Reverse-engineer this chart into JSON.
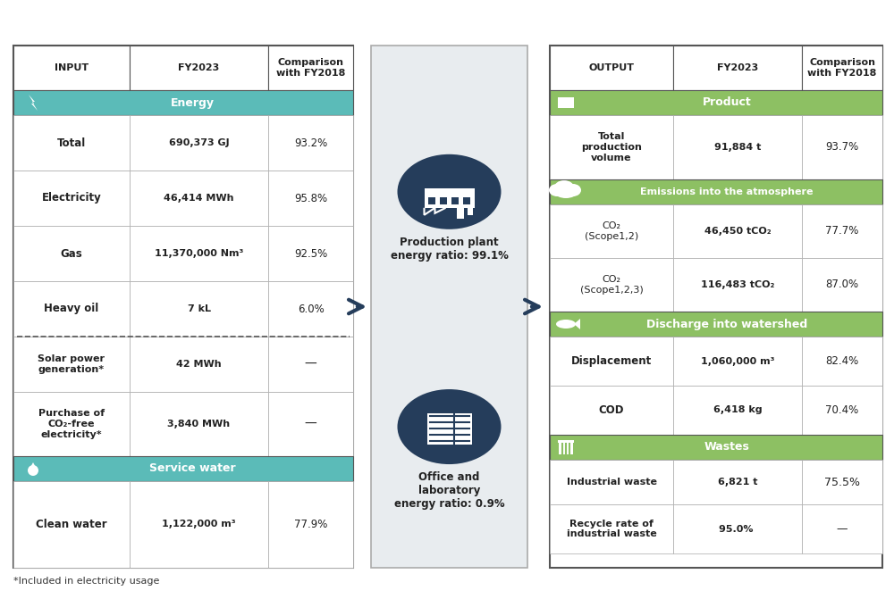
{
  "bg_color": "#ffffff",
  "teal_color": "#5bbbb8",
  "green_color": "#8dc063",
  "dark_navy": "#253d5b",
  "light_gray_bg": "#e8ecef",
  "border_color": "#444444",
  "input_header": [
    "INPUT",
    "FY2023",
    "Comparison\nwith FY2018"
  ],
  "output_header": [
    "OUTPUT",
    "FY2023",
    "Comparison\nwith FY2018"
  ],
  "energy_section_label": "Energy",
  "service_water_section_label": "Service water",
  "product_section_label": "Product",
  "emissions_section_label": "Emissions into the atmosphere",
  "watershed_section_label": "Discharge into watershed",
  "wastes_section_label": "Wastes",
  "input_rows": [
    [
      "Total",
      "690,373",
      "GJ",
      "93.2%"
    ],
    [
      "Electricity",
      "46,414",
      "MWh",
      "95.8%"
    ],
    [
      "Gas",
      "11,370,000",
      "Nm³",
      "92.5%"
    ],
    [
      "Heavy oil",
      "7",
      "kL",
      "6.0%"
    ],
    [
      "Solar power\ngeneration*",
      "42",
      "MWh",
      "—"
    ],
    [
      "Purchase of\nCO₂-free\nelectricity*",
      "3,840",
      "MWh",
      "—"
    ],
    [
      "Clean water",
      "1,122,000",
      "m³",
      "77.9%"
    ]
  ],
  "output_rows": [
    [
      "Total\nproduction\nvolume",
      "91,884",
      "t",
      "93.7%"
    ],
    [
      "CO₂\n(Scope1,2)",
      "46,450",
      "tCO₂",
      "77.7%"
    ],
    [
      "CO₂\n(Scope1,2,3)",
      "116,483",
      "tCO₂",
      "87.0%"
    ],
    [
      "Displacement",
      "1,060,000",
      "m³",
      "82.4%"
    ],
    [
      "COD",
      "6,418",
      "kg",
      "70.4%"
    ],
    [
      "Industrial waste",
      "6,821",
      "t",
      "75.5%"
    ],
    [
      "Recycle rate of\nindustrial waste",
      "95.0%",
      "",
      "—"
    ]
  ],
  "production_plant_text": "Production plant\nenergy ratio: 99.1%",
  "office_lab_text": "Office and\nlaboratory\nenergy ratio: 0.9%",
  "footnote": "*Included in electricity usage"
}
